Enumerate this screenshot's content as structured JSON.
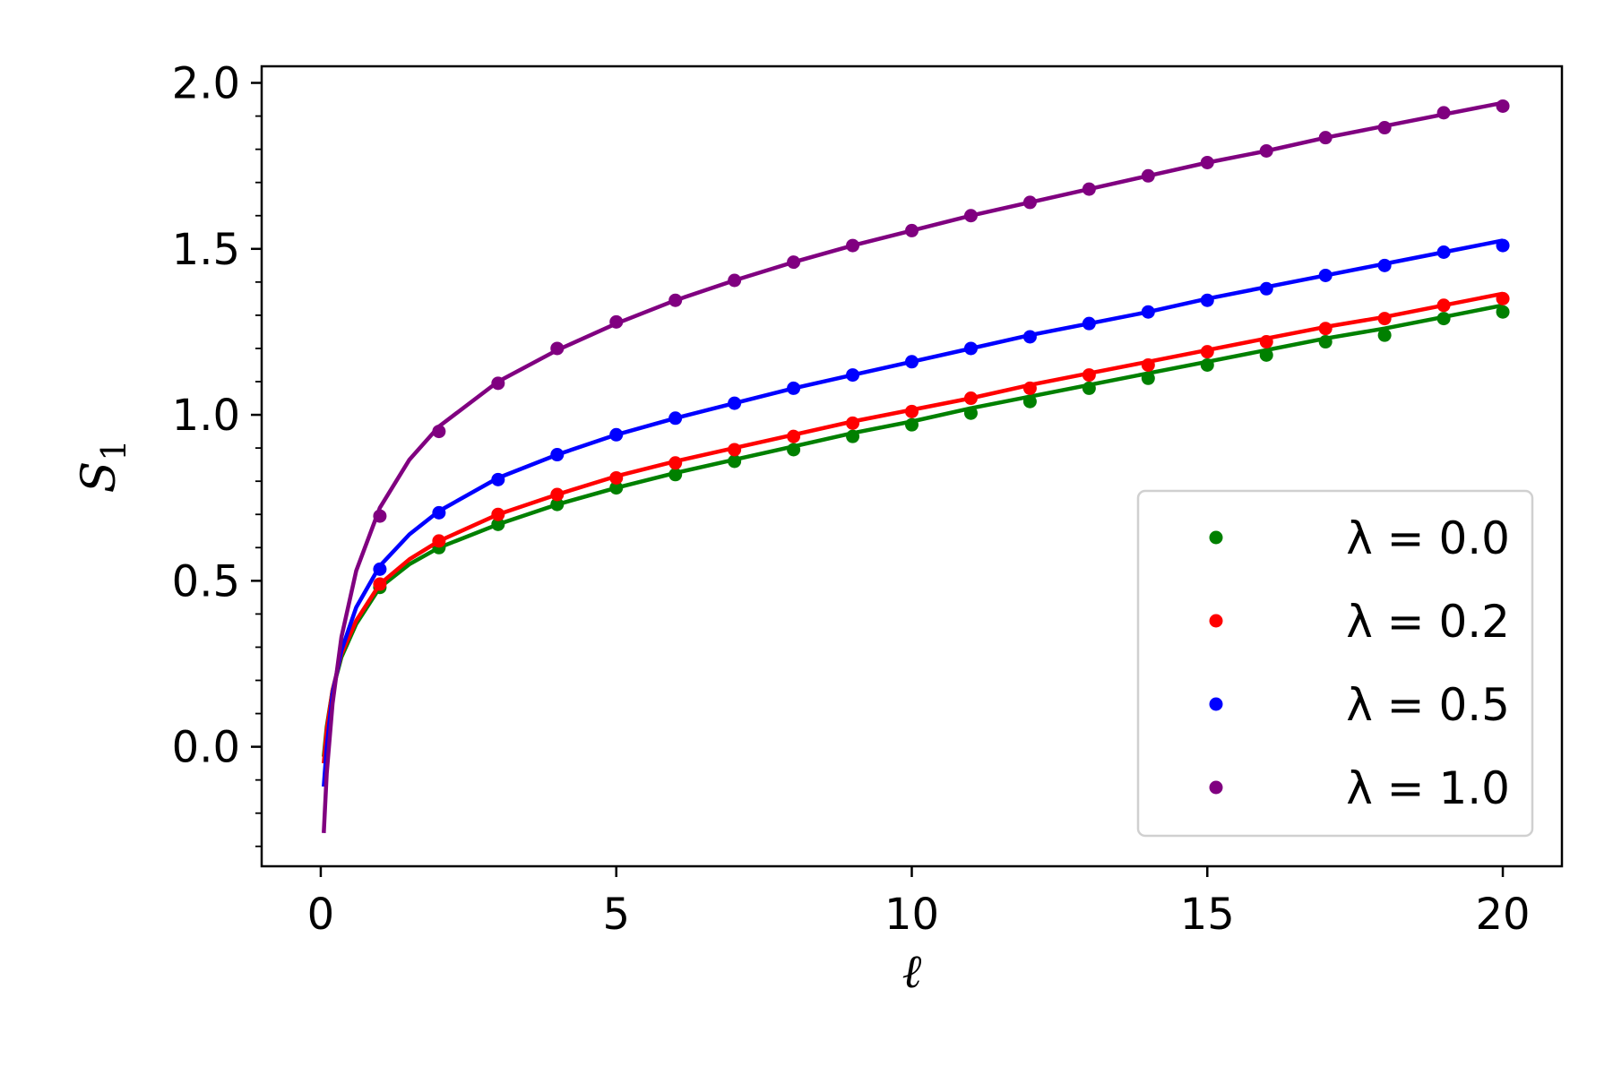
{
  "chart_data": {
    "type": "line",
    "xlabel": "ℓ",
    "ylabel_main": "S",
    "ylabel_sub": "1",
    "xlim": [
      -1,
      21
    ],
    "ylim": [
      -0.36,
      2.05
    ],
    "xticks": [
      "0",
      "5",
      "10",
      "15",
      "20"
    ],
    "yticks": [
      "0.0",
      "0.5",
      "1.0",
      "1.5",
      "2.0"
    ],
    "legend_position": "lower-right",
    "grid": false,
    "x_points": [
      1,
      2,
      3,
      4,
      5,
      6,
      7,
      8,
      9,
      10,
      11,
      12,
      13,
      14,
      15,
      16,
      17,
      18,
      19,
      20
    ],
    "series": [
      {
        "name": "λ = 0.0",
        "color": "#008000",
        "points": [
          0.48,
          0.6,
          0.67,
          0.73,
          0.78,
          0.82,
          0.86,
          0.895,
          0.935,
          0.97,
          1.005,
          1.04,
          1.08,
          1.11,
          1.15,
          1.18,
          1.22,
          1.24,
          1.29,
          1.31
        ],
        "curve": [
          [
            0.05,
            -0.03
          ],
          [
            0.1,
            0.06
          ],
          [
            0.2,
            0.17
          ],
          [
            0.35,
            0.27
          ],
          [
            0.6,
            0.37
          ],
          [
            1,
            0.48
          ],
          [
            1.5,
            0.55
          ],
          [
            2,
            0.6
          ],
          [
            3,
            0.67
          ],
          [
            4,
            0.73
          ],
          [
            5,
            0.78
          ],
          [
            6,
            0.825
          ],
          [
            7,
            0.865
          ],
          [
            8,
            0.905
          ],
          [
            9,
            0.945
          ],
          [
            10,
            0.98
          ],
          [
            11,
            1.02
          ],
          [
            12,
            1.055
          ],
          [
            13,
            1.09
          ],
          [
            14,
            1.125
          ],
          [
            15,
            1.16
          ],
          [
            16,
            1.195
          ],
          [
            17,
            1.23
          ],
          [
            18,
            1.26
          ],
          [
            19,
            1.295
          ],
          [
            20,
            1.33
          ]
        ]
      },
      {
        "name": "λ = 0.2",
        "color": "#ff0000",
        "points": [
          0.49,
          0.62,
          0.7,
          0.76,
          0.81,
          0.855,
          0.895,
          0.935,
          0.975,
          1.01,
          1.05,
          1.08,
          1.12,
          1.15,
          1.19,
          1.22,
          1.26,
          1.29,
          1.33,
          1.35
        ],
        "curve": [
          [
            0.05,
            -0.05
          ],
          [
            0.1,
            0.05
          ],
          [
            0.2,
            0.17
          ],
          [
            0.35,
            0.28
          ],
          [
            0.6,
            0.38
          ],
          [
            1,
            0.49
          ],
          [
            1.5,
            0.565
          ],
          [
            2,
            0.62
          ],
          [
            3,
            0.7
          ],
          [
            4,
            0.76
          ],
          [
            5,
            0.815
          ],
          [
            6,
            0.86
          ],
          [
            7,
            0.9
          ],
          [
            8,
            0.94
          ],
          [
            9,
            0.98
          ],
          [
            10,
            1.015
          ],
          [
            11,
            1.05
          ],
          [
            12,
            1.09
          ],
          [
            13,
            1.125
          ],
          [
            14,
            1.16
          ],
          [
            15,
            1.195
          ],
          [
            16,
            1.23
          ],
          [
            17,
            1.265
          ],
          [
            18,
            1.295
          ],
          [
            19,
            1.33
          ],
          [
            20,
            1.365
          ]
        ]
      },
      {
        "name": "λ = 0.5",
        "color": "#0000ff",
        "points": [
          0.535,
          0.705,
          0.805,
          0.88,
          0.94,
          0.99,
          1.035,
          1.08,
          1.12,
          1.16,
          1.2,
          1.235,
          1.275,
          1.31,
          1.345,
          1.38,
          1.42,
          1.45,
          1.49,
          1.51
        ],
        "curve": [
          [
            0.05,
            -0.12
          ],
          [
            0.1,
            0.0
          ],
          [
            0.2,
            0.16
          ],
          [
            0.35,
            0.29
          ],
          [
            0.6,
            0.42
          ],
          [
            1,
            0.545
          ],
          [
            1.5,
            0.64
          ],
          [
            2,
            0.71
          ],
          [
            3,
            0.81
          ],
          [
            4,
            0.88
          ],
          [
            5,
            0.94
          ],
          [
            6,
            0.99
          ],
          [
            7,
            1.035
          ],
          [
            8,
            1.08
          ],
          [
            9,
            1.12
          ],
          [
            10,
            1.16
          ],
          [
            11,
            1.2
          ],
          [
            12,
            1.24
          ],
          [
            13,
            1.275
          ],
          [
            14,
            1.31
          ],
          [
            15,
            1.35
          ],
          [
            16,
            1.385
          ],
          [
            17,
            1.42
          ],
          [
            18,
            1.455
          ],
          [
            19,
            1.49
          ],
          [
            20,
            1.525
          ]
        ]
      },
      {
        "name": "λ = 1.0",
        "color": "#800080",
        "points": [
          0.695,
          0.95,
          1.095,
          1.2,
          1.28,
          1.345,
          1.405,
          1.46,
          1.51,
          1.555,
          1.6,
          1.64,
          1.68,
          1.72,
          1.76,
          1.795,
          1.835,
          1.865,
          1.91,
          1.93
        ],
        "curve": [
          [
            0.05,
            -0.26
          ],
          [
            0.1,
            -0.08
          ],
          [
            0.2,
            0.13
          ],
          [
            0.35,
            0.33
          ],
          [
            0.6,
            0.53
          ],
          [
            1,
            0.72
          ],
          [
            1.5,
            0.865
          ],
          [
            2,
            0.965
          ],
          [
            3,
            1.1
          ],
          [
            4,
            1.195
          ],
          [
            5,
            1.275
          ],
          [
            6,
            1.345
          ],
          [
            7,
            1.405
          ],
          [
            8,
            1.46
          ],
          [
            9,
            1.51
          ],
          [
            10,
            1.555
          ],
          [
            11,
            1.6
          ],
          [
            12,
            1.64
          ],
          [
            13,
            1.68
          ],
          [
            14,
            1.72
          ],
          [
            15,
            1.76
          ],
          [
            16,
            1.795
          ],
          [
            17,
            1.835
          ],
          [
            18,
            1.87
          ],
          [
            19,
            1.905
          ],
          [
            20,
            1.94
          ]
        ]
      }
    ]
  }
}
